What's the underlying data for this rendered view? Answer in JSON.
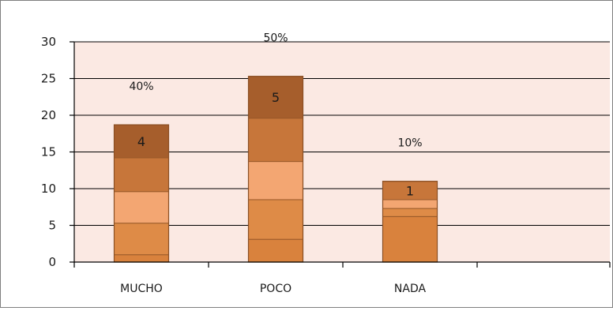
{
  "chart_data": {
    "type": "bar",
    "stacked": true,
    "categories": [
      "MUCHO",
      "POCO",
      "NADA"
    ],
    "values": [
      18.7,
      25.3,
      11
    ],
    "count_labels": [
      "4",
      "5",
      "1"
    ],
    "percent_labels": [
      "40%",
      "50%",
      "10%"
    ],
    "segment_boundaries": [
      [
        1,
        5.3,
        9.6,
        14.2,
        18.7
      ],
      [
        3.1,
        8.5,
        13.7,
        19.6,
        25.3
      ],
      [
        6.2,
        7.3,
        8.5,
        11
      ]
    ],
    "yticks": [
      0,
      5,
      10,
      15,
      20,
      25,
      30
    ],
    "ylim": [
      0,
      30
    ],
    "xlabel": "",
    "ylabel": "",
    "grid": true,
    "plot_background": "#fbe9e3",
    "segment_colors": [
      "#d9823d",
      "#de8b47",
      "#f3a672",
      "#c7763a",
      "#a65e2c"
    ],
    "gridline_color": "#000000"
  }
}
